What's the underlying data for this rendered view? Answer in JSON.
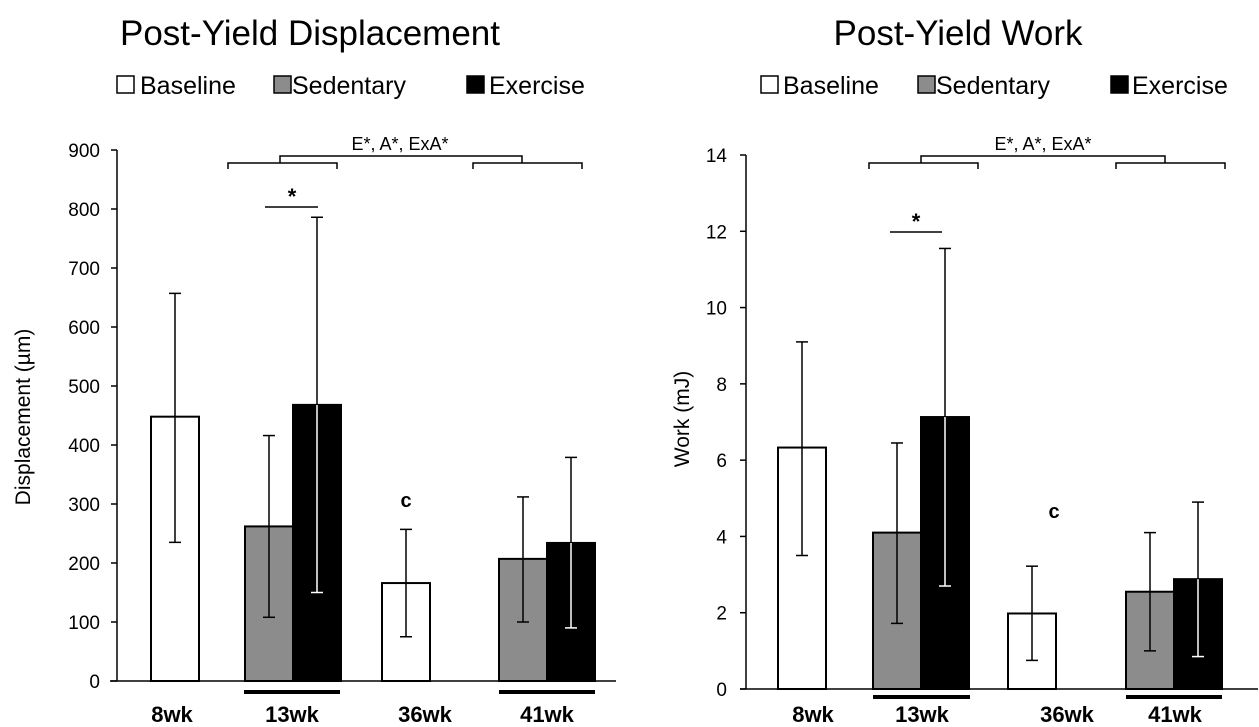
{
  "colors": {
    "Baseline": "#ffffff",
    "Sedentary": "#8c8c8c",
    "Exercise": "#000000"
  },
  "chart_data": [
    {
      "type": "bar",
      "title": "Post-Yield Displacement",
      "ylabel": "Displacement (µm)",
      "ylim": [
        0,
        900
      ],
      "yticks": [
        0,
        100,
        200,
        300,
        400,
        500,
        600,
        700,
        800,
        900
      ],
      "yticklabels": [
        "0",
        "100",
        "200",
        "300",
        "400",
        "500",
        "600",
        "700",
        "800",
        "900"
      ],
      "legend": [
        "Baseline",
        "Sedentary",
        "Exercise"
      ],
      "legend_position": "top",
      "categories": [
        "8wk",
        "13wk",
        "36wk",
        "41wk"
      ],
      "underlined_categories": [
        "13wk",
        "41wk"
      ],
      "bars": [
        {
          "category": "8wk",
          "series": "Baseline",
          "value": 448,
          "err_low": 235,
          "err_high": 657
        },
        {
          "category": "13wk",
          "series": "Sedentary",
          "value": 262,
          "err_low": 108,
          "err_high": 416
        },
        {
          "category": "13wk",
          "series": "Exercise",
          "value": 468,
          "err_low": 150,
          "err_high": 786
        },
        {
          "category": "36wk",
          "series": "Baseline",
          "value": 166,
          "err_low": 75,
          "err_high": 257
        },
        {
          "category": "41wk",
          "series": "Sedentary",
          "value": 207,
          "err_low": 100,
          "err_high": 312
        },
        {
          "category": "41wk",
          "series": "Exercise",
          "value": 234,
          "err_low": 90,
          "err_high": 379
        }
      ],
      "annotations": {
        "effects": "E*, A*, ExA*",
        "pairwise_star": "*",
        "c_mark": "c"
      }
    },
    {
      "type": "bar",
      "title": "Post-Yield Work",
      "ylabel": "Work (mJ)",
      "ylim": [
        0,
        14
      ],
      "yticks": [
        0,
        2,
        4,
        6,
        8,
        10,
        12,
        14
      ],
      "yticklabels": [
        "0",
        "2",
        "4",
        "6",
        "8",
        "10",
        "12",
        "14"
      ],
      "legend": [
        "Baseline",
        "Sedentary",
        "Exercise"
      ],
      "legend_position": "top",
      "categories": [
        "8wk",
        "13wk",
        "36wk",
        "41wk"
      ],
      "underlined_categories": [
        "13wk",
        "41wk"
      ],
      "bars": [
        {
          "category": "8wk",
          "series": "Baseline",
          "value": 6.33,
          "err_low": 3.5,
          "err_high": 9.1
        },
        {
          "category": "13wk",
          "series": "Sedentary",
          "value": 4.1,
          "err_low": 1.72,
          "err_high": 6.45
        },
        {
          "category": "13wk",
          "series": "Exercise",
          "value": 7.13,
          "err_low": 2.7,
          "err_high": 11.55
        },
        {
          "category": "36wk",
          "series": "Baseline",
          "value": 1.98,
          "err_low": 0.75,
          "err_high": 3.22
        },
        {
          "category": "41wk",
          "series": "Sedentary",
          "value": 2.55,
          "err_low": 1.0,
          "err_high": 4.1
        },
        {
          "category": "41wk",
          "series": "Exercise",
          "value": 2.88,
          "err_low": 0.85,
          "err_high": 4.9
        }
      ],
      "annotations": {
        "effects": "E*, A*, ExA*",
        "pairwise_star": "*",
        "c_mark": "c"
      }
    }
  ]
}
